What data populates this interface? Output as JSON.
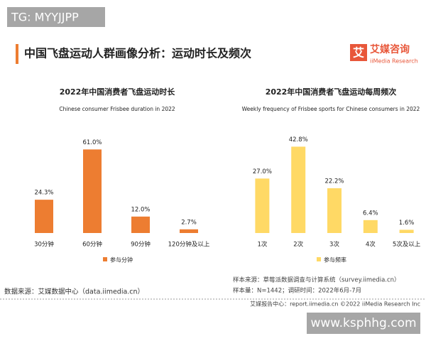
{
  "watermark_top": "TG: MYYJJPP",
  "header": {
    "title": "中国飞盘运动人群画像分析：运动时长及频次",
    "logo": "艾",
    "brand": "艾媒咨询",
    "brand_en": "iiMedia Research"
  },
  "chart_data": [
    {
      "type": "bar",
      "title": "2022年中国消费者飞盘运动时长",
      "subtitle": "Chinese consumer Frisbee duration in 2022",
      "categories": [
        "30分钟",
        "60分钟",
        "90分钟",
        "120分钟及以上"
      ],
      "series": [
        {
          "name": "参与分钟",
          "color": "#ed7d31",
          "values": [
            24.3,
            61.0,
            12.0,
            2.7
          ],
          "value_labels": [
            "24.3%",
            "61.0%",
            "12.0%",
            "2.7%"
          ]
        }
      ],
      "ylim": [
        0,
        70
      ]
    },
    {
      "type": "bar",
      "title": "2022年中国消费者飞盘运动每周频次",
      "subtitle": "Weekly frequency of Frisbee sports for Chinese consumers in 2022",
      "categories": [
        "1次",
        "2次",
        "3次",
        "4次",
        "5次及以上"
      ],
      "series": [
        {
          "name": "参与频率",
          "color": "#ffd965",
          "values": [
            27.0,
            42.8,
            22.2,
            6.4,
            1.6
          ],
          "value_labels": [
            "27.0%",
            "42.8%",
            "22.2%",
            "6.4%",
            "1.6%"
          ]
        }
      ],
      "ylim": [
        0,
        50
      ]
    }
  ],
  "notes": [
    "样本来源：草莓派数据调查与计算系统（survey.iimedia.cn）",
    "样本量：N=1442；调研时间：2022年6月-7月"
  ],
  "source": "数据来源：艾媒数据中心（data.iimedia.cn）",
  "footer": "艾媒报告中心：report.iimedia.cn  ©2022  iiMedia Research  Inc",
  "watermark_bottom": "www.ksphhg.com"
}
